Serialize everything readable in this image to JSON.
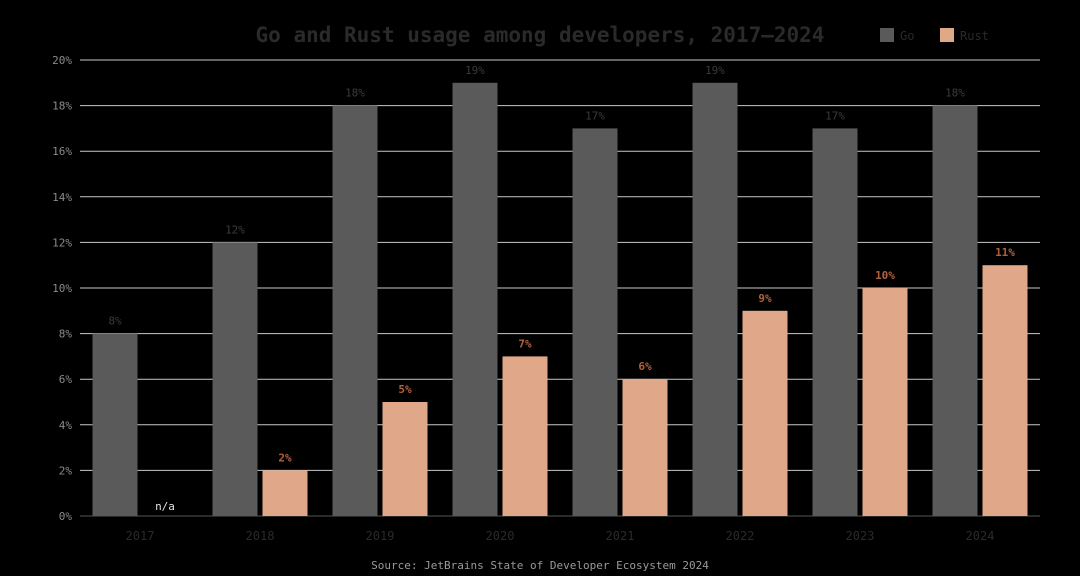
{
  "chart_data": {
    "type": "bar",
    "title": "Go and Rust usage among developers, 2017–2024",
    "categories": [
      "2017",
      "2018",
      "2019",
      "2020",
      "2021",
      "2022",
      "2023",
      "2024"
    ],
    "series": [
      {
        "name": "Go",
        "color": "#5a5a5a",
        "label_color": "#3a3a3a",
        "values": [
          8,
          12,
          18,
          19,
          17,
          19,
          17,
          18
        ],
        "labels": [
          "8%",
          "12%",
          "18%",
          "19%",
          "17%",
          "19%",
          "17%",
          "18%"
        ]
      },
      {
        "name": "Rust",
        "color": "#e0a888",
        "label_color": "#b0623e",
        "values": [
          null,
          2,
          5,
          7,
          6,
          9,
          10,
          11
        ],
        "labels": [
          "n/a",
          "2%",
          "5%",
          "7%",
          "6%",
          "9%",
          "10%",
          "11%"
        ]
      }
    ],
    "ylim": [
      0,
      20
    ],
    "yticks": [
      "0%",
      "2%",
      "4%",
      "6%",
      "8%",
      "10%",
      "12%",
      "14%",
      "16%",
      "18%",
      "20%"
    ],
    "grid": true,
    "legend_position": "top-right",
    "xlabel": "",
    "ylabel": "",
    "missing_label_color": "#e0e0e0"
  },
  "source": "Source: JetBrains State of Developer Ecosystem 2024"
}
